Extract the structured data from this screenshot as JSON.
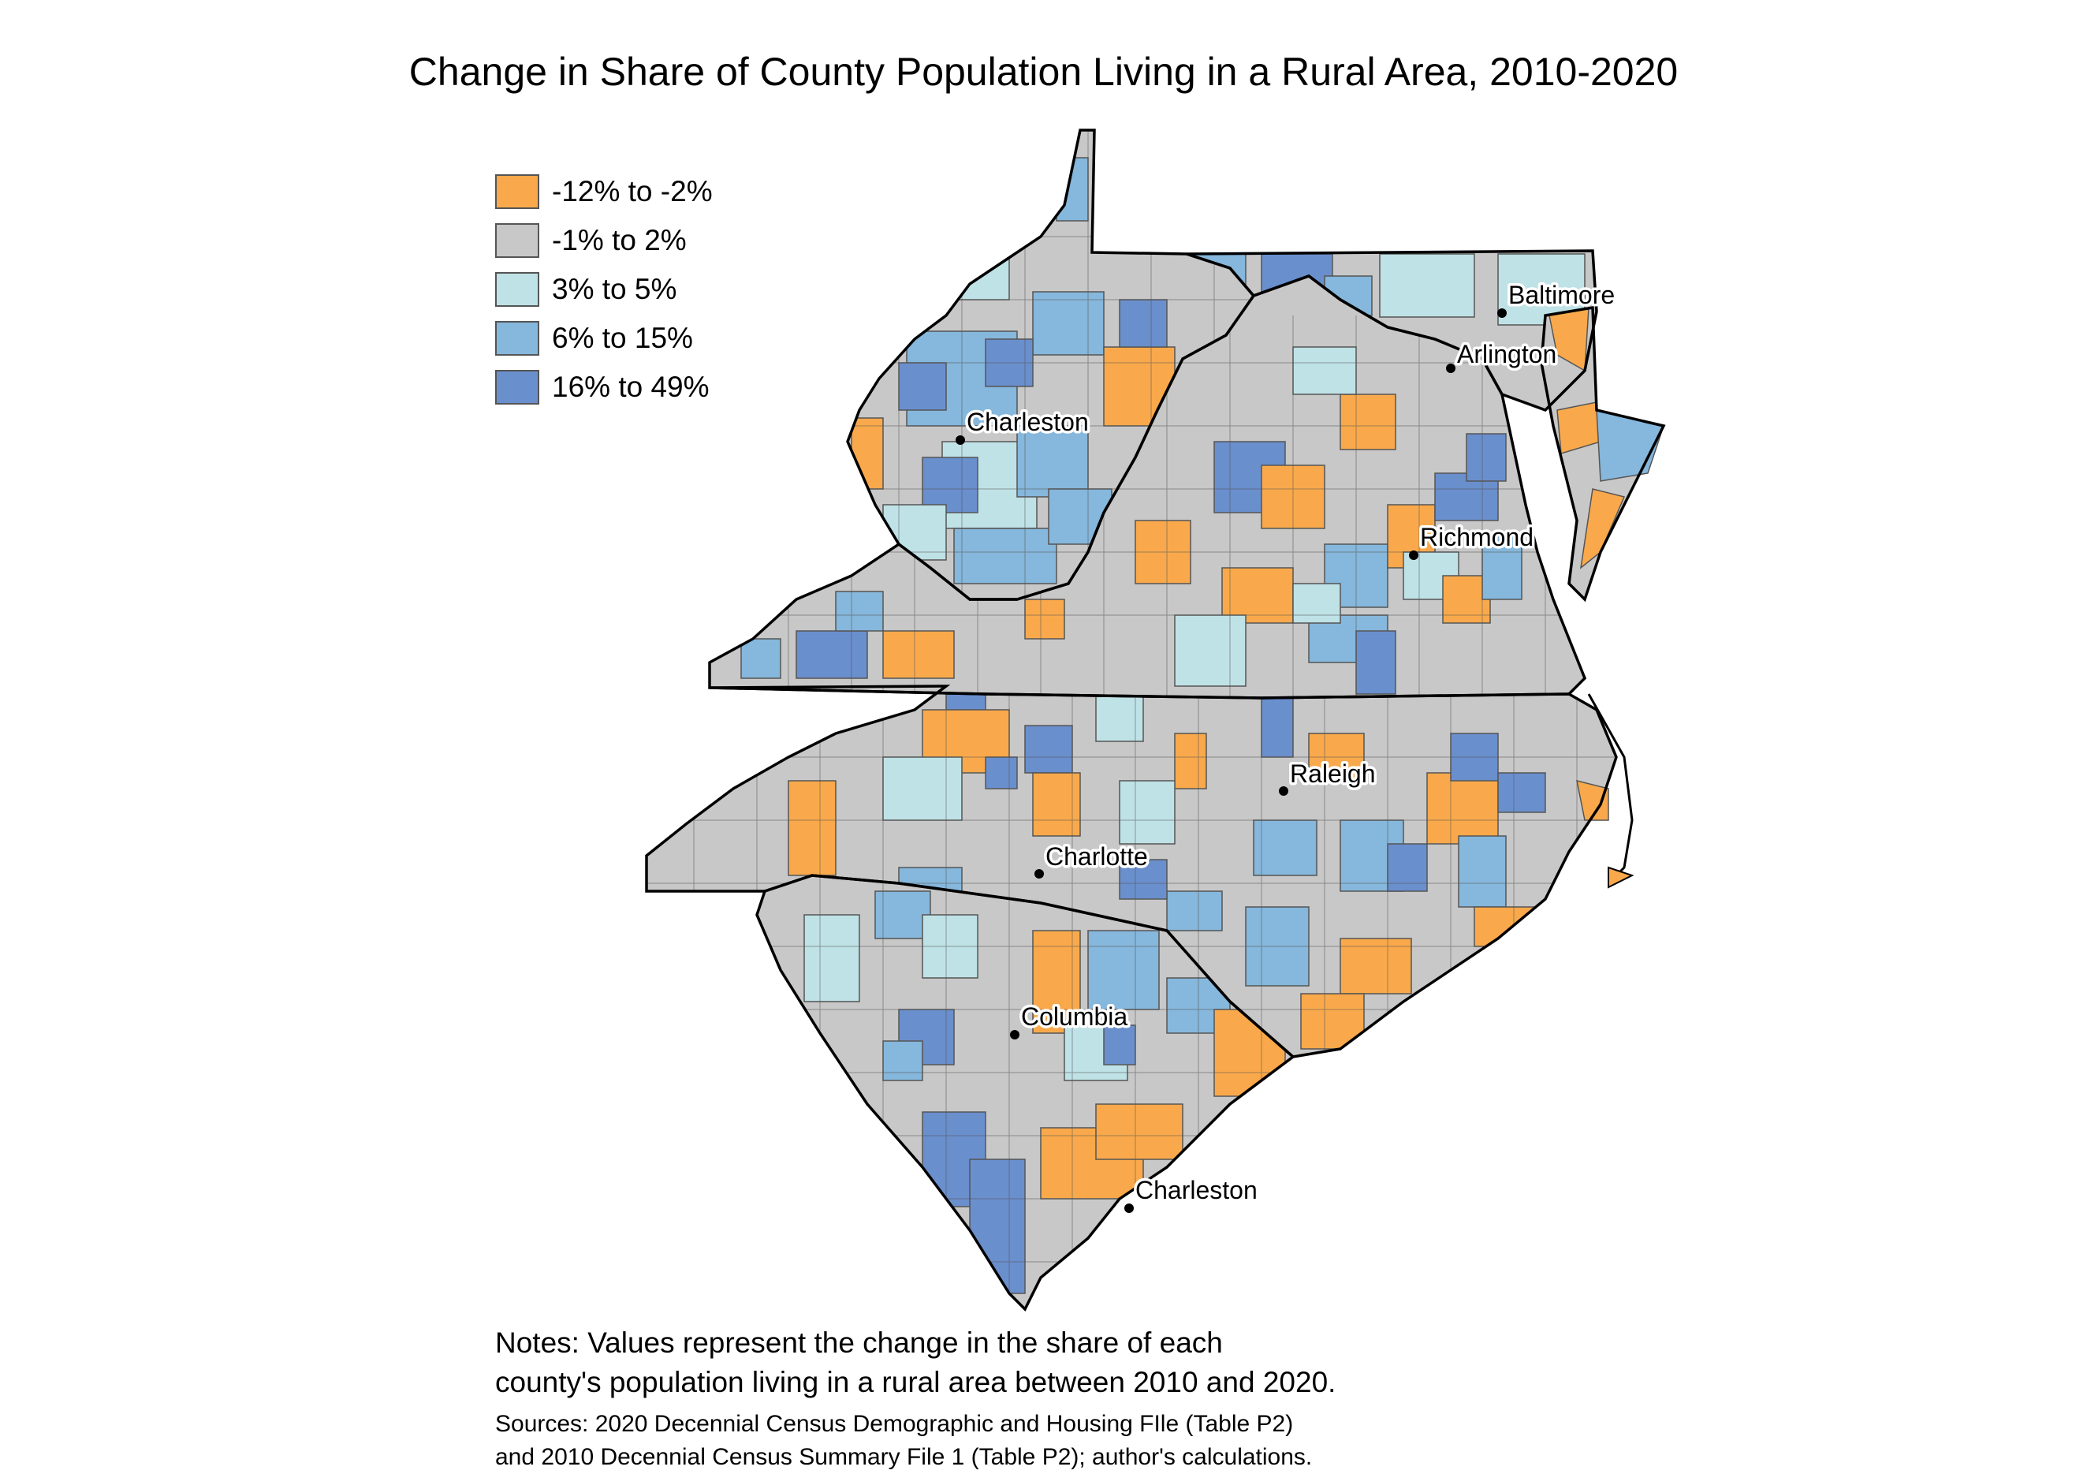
{
  "title": "Change in Share of County Population Living in a Rural Area, 2010-2020",
  "legend": {
    "items": [
      {
        "label": "-12% to -2%",
        "color": "#f9a94b"
      },
      {
        "label": "-1% to 2%",
        "color": "#c8c8c8"
      },
      {
        "label": "3% to 5%",
        "color": "#bfe2e6"
      },
      {
        "label": "6% to 15%",
        "color": "#86b7dc"
      },
      {
        "label": "16% to 49%",
        "color": "#6a8fcd"
      }
    ]
  },
  "cities": [
    {
      "name": "Baltimore"
    },
    {
      "name": "Arlington"
    },
    {
      "name": "Charleston"
    },
    {
      "name": "Richmond"
    },
    {
      "name": "Raleigh"
    },
    {
      "name": "Charlotte"
    },
    {
      "name": "Columbia"
    },
    {
      "name": "Charleston"
    }
  ],
  "notes": {
    "line1": "Notes: Values represent the change in the share of each",
    "line2": "county's population living in a rural area between 2010 and 2020."
  },
  "sources": {
    "line1": "Sources: 2020 Decennial Census Demographic and Housing FIle (Table P2)",
    "line2": "and 2010 Decennial Census Summary File 1 (Table P2); author's calculations."
  }
}
